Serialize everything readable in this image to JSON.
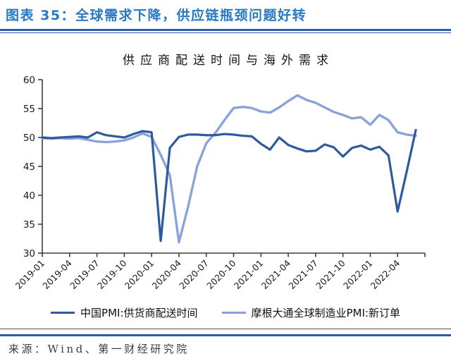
{
  "header": {
    "title": "图表 35：全球需求下降，供应链瓶颈问题好转"
  },
  "footer": {
    "source": "来源：Wind、第一财经研究院"
  },
  "colors": {
    "title_blue": "#2979c2",
    "rule_blue": "#2b5da9",
    "axis": "#3d3d3d",
    "series_dark": "#2e5a9e",
    "series_light": "#8ba3db"
  },
  "chart_data": {
    "type": "line",
    "title": "供应商配送时间与海外需求",
    "grid": false,
    "legend_position": "bottom",
    "ylim": [
      30,
      60
    ],
    "yticks": [
      30,
      35,
      40,
      45,
      50,
      55,
      60
    ],
    "x_tick_step_months": 3,
    "x": [
      "2019-01",
      "2019-02",
      "2019-03",
      "2019-04",
      "2019-05",
      "2019-06",
      "2019-07",
      "2019-08",
      "2019-09",
      "2019-10",
      "2019-11",
      "2019-12",
      "2020-01",
      "2020-02",
      "2020-03",
      "2020-04",
      "2020-05",
      "2020-06",
      "2020-07",
      "2020-08",
      "2020-09",
      "2020-10",
      "2020-11",
      "2020-12",
      "2021-01",
      "2021-02",
      "2021-03",
      "2021-04",
      "2021-05",
      "2021-06",
      "2021-07",
      "2021-08",
      "2021-09",
      "2021-10",
      "2021-11",
      "2021-12",
      "2022-01",
      "2022-02",
      "2022-03",
      "2022-04",
      "2022-05",
      "2022-06"
    ],
    "x_tick_labels": [
      "2019-01",
      "2019-04",
      "2019-07",
      "2019-10",
      "2020-01",
      "2020-04",
      "2020-07",
      "2020-10",
      "2021-01",
      "2021-04",
      "2021-07",
      "2021-10",
      "2022-01",
      "2022-04"
    ],
    "series": [
      {
        "name": "中国PMI:供货商配送时间",
        "color": "#2e5a9e",
        "values": [
          50.0,
          49.9,
          50.0,
          50.1,
          50.2,
          50.0,
          50.9,
          50.4,
          50.2,
          50.0,
          50.6,
          51.1,
          50.9,
          32.1,
          48.2,
          50.1,
          50.5,
          50.5,
          50.4,
          50.4,
          50.6,
          50.5,
          50.3,
          50.2,
          48.9,
          47.9,
          50.0,
          48.7,
          48.1,
          47.6,
          47.7,
          48.8,
          48.3,
          46.7,
          48.2,
          48.6,
          47.9,
          48.4,
          46.9,
          37.2,
          44.1,
          51.3
        ]
      },
      {
        "name": "摩根大通全球制造业PMI:新订单",
        "color": "#8ba3db",
        "values": [
          49.9,
          49.8,
          49.9,
          49.8,
          49.9,
          49.6,
          49.3,
          49.2,
          49.3,
          49.5,
          50.0,
          50.7,
          50.1,
          47.0,
          43.5,
          31.9,
          38.0,
          45.0,
          49.0,
          50.8,
          53.0,
          55.1,
          55.3,
          55.1,
          54.5,
          54.3,
          55.2,
          56.3,
          57.3,
          56.5,
          56.0,
          55.2,
          54.4,
          53.9,
          53.3,
          53.5,
          52.2,
          53.9,
          53.0,
          50.9,
          50.5,
          50.3
        ]
      }
    ]
  }
}
